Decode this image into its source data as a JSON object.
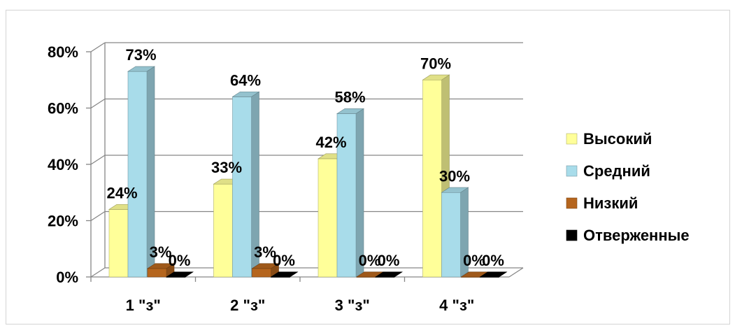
{
  "chart_data": {
    "type": "bar",
    "categories": [
      "1 \"з\"",
      "2 \"з\"",
      "3 \"з\"",
      "4 \"з\""
    ],
    "series": [
      {
        "name": "Высокий",
        "values": [
          24,
          33,
          42,
          70
        ],
        "labels": [
          "24%",
          "33%",
          "42%",
          "70%"
        ],
        "color": "#ffff99"
      },
      {
        "name": "Средний",
        "values": [
          73,
          64,
          58,
          30
        ],
        "labels": [
          "73%",
          "64%",
          "58%",
          "30%"
        ],
        "color": "#a8dcea"
      },
      {
        "name": "Низкий",
        "values": [
          3,
          3,
          0,
          0
        ],
        "labels": [
          "3%",
          "3%",
          "0%",
          "0%"
        ],
        "color": "#b5651d"
      },
      {
        "name": "Отверженные",
        "values": [
          0,
          0,
          0,
          0
        ],
        "labels": [
          "0%",
          "0%",
          "0%",
          "0%"
        ],
        "color": "#000000"
      }
    ],
    "yticks": [
      "0%",
      "20%",
      "40%",
      "60%",
      "80%"
    ],
    "ylim": [
      0,
      80
    ],
    "grid": true,
    "legend": "right",
    "projection": "3d-column"
  }
}
